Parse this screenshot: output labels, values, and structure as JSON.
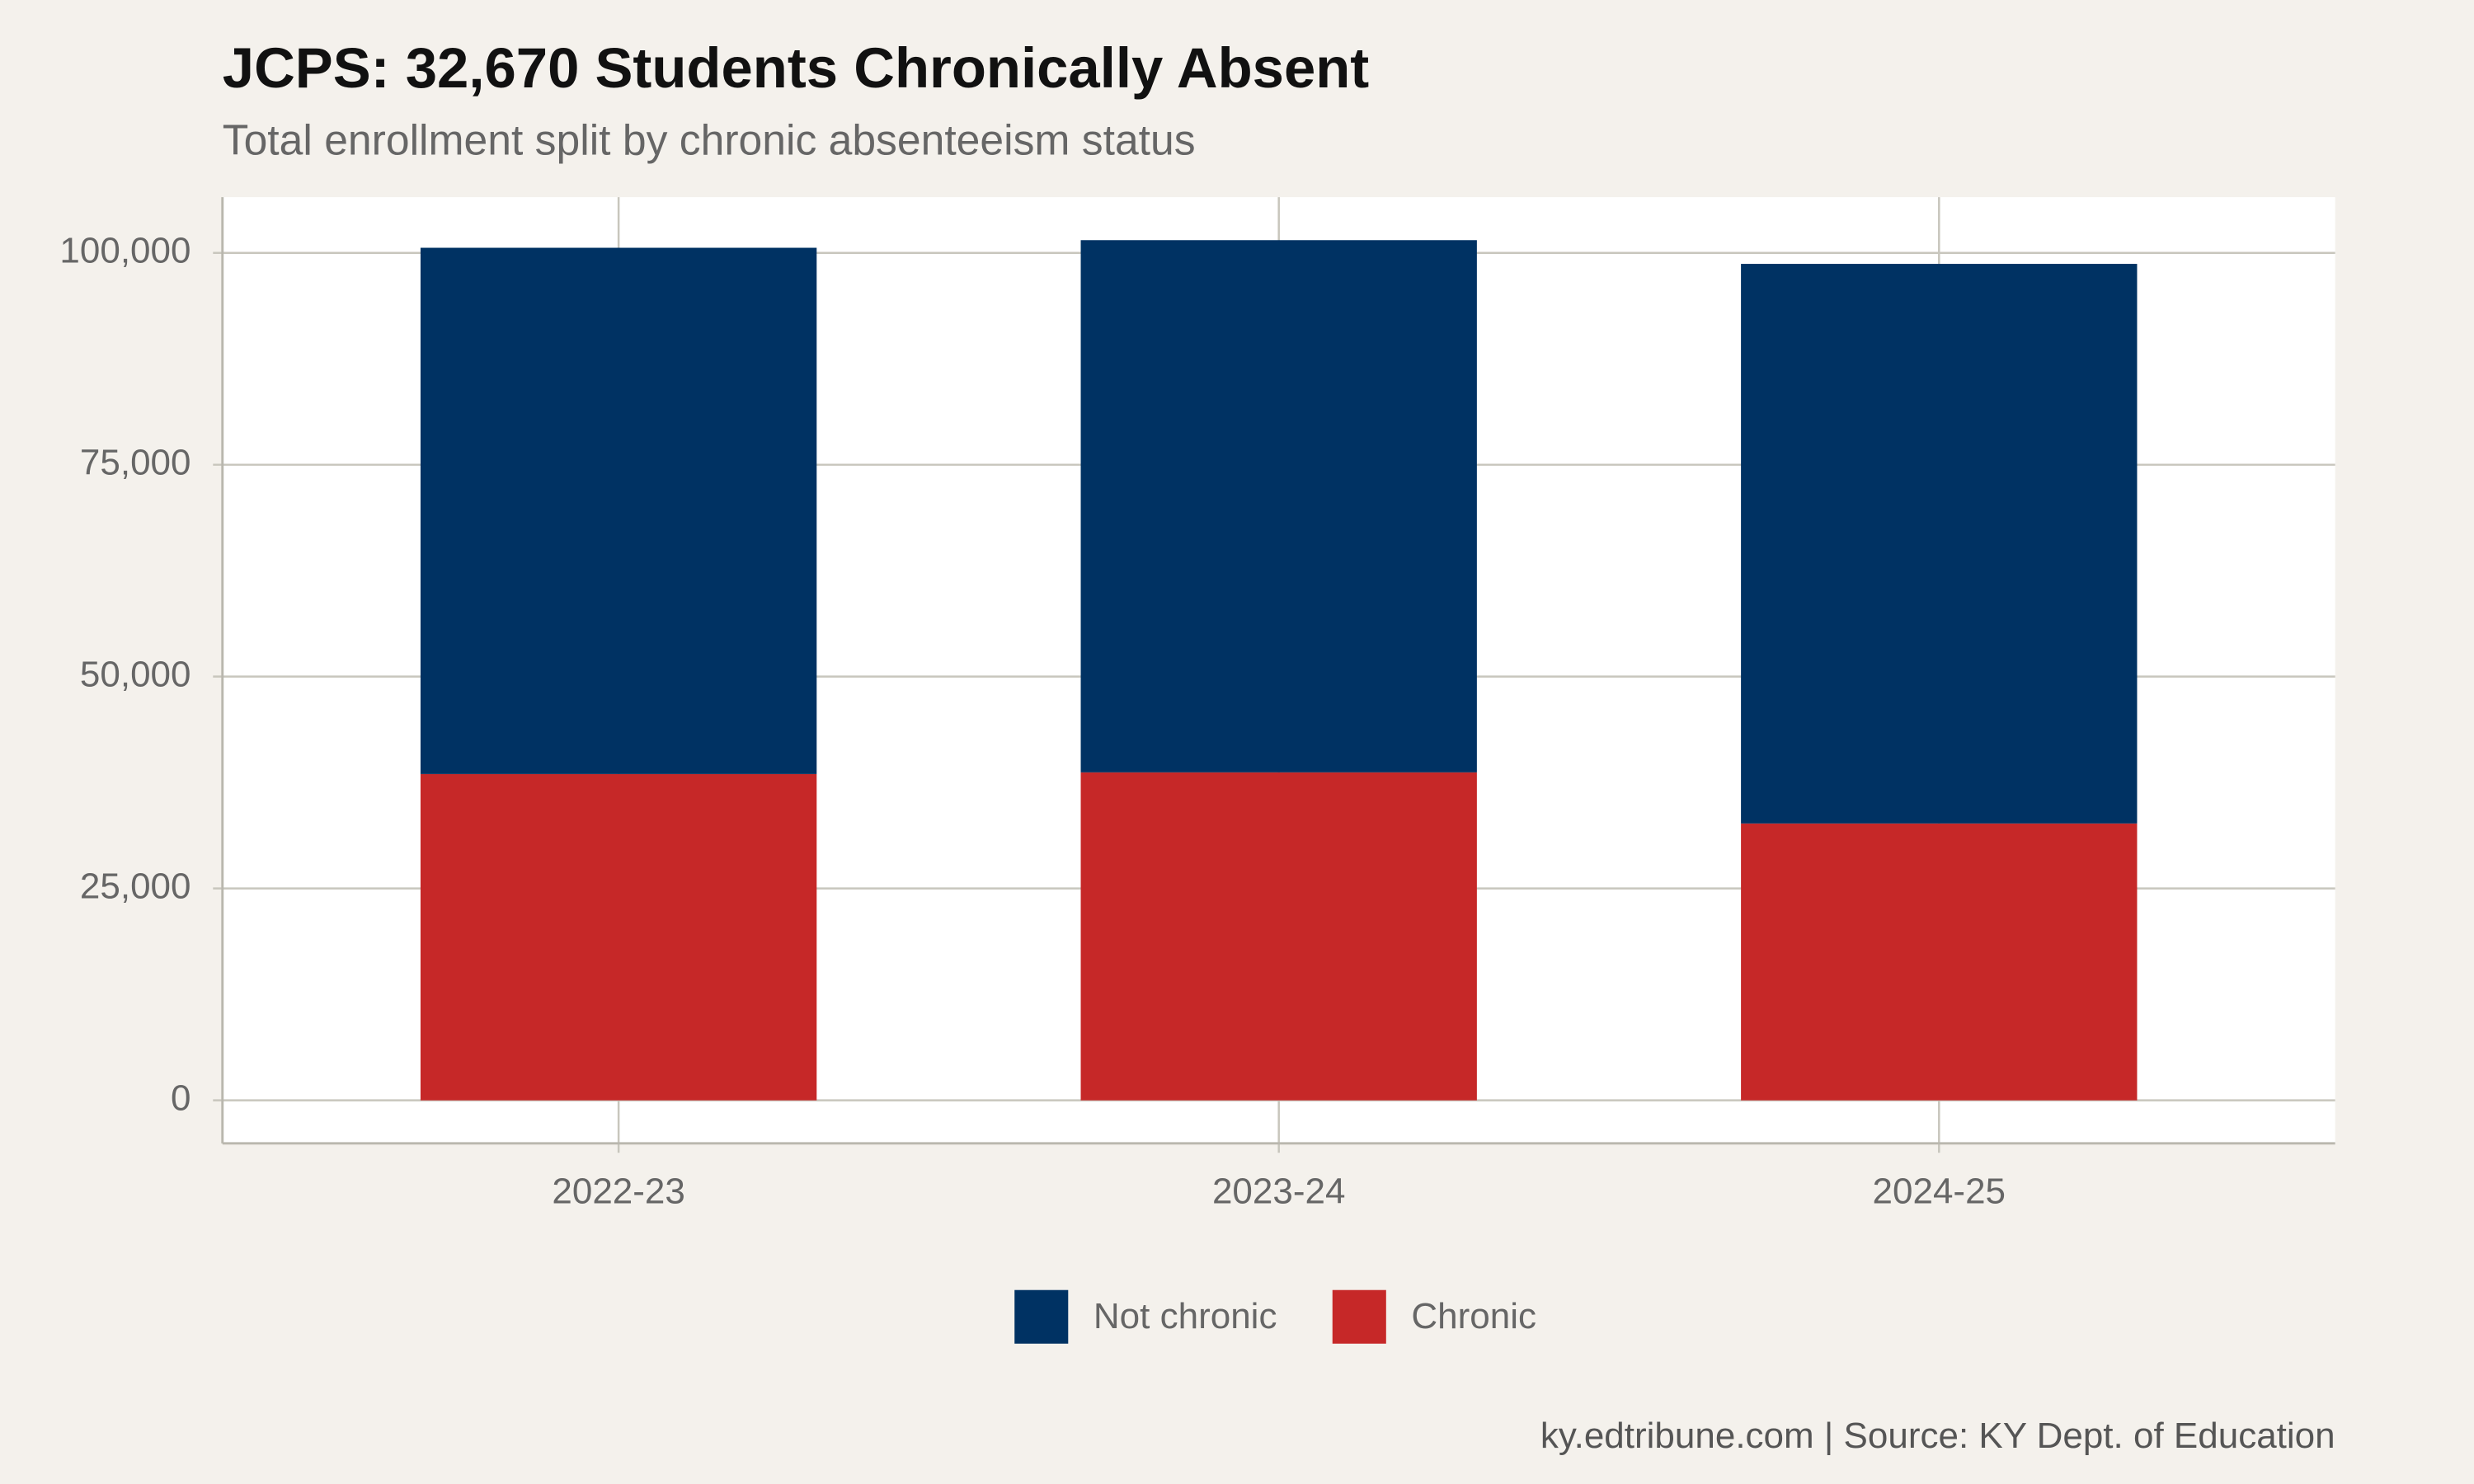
{
  "chart_data": {
    "type": "stacked-bar",
    "title": "JCPS: 32,670 Students Chronically Absent",
    "subtitle": "Total enrollment split by chronic absenteeism status",
    "caption": "ky.edtribune.com | Source: KY Dept. of Education",
    "categories": [
      "2022-23",
      "2023-24",
      "2024-25"
    ],
    "series": [
      {
        "name": "Not chronic",
        "color": "#003263",
        "values": [
          62100,
          62800,
          66030
        ]
      },
      {
        "name": "Chronic",
        "color": "#c62828",
        "values": [
          38500,
          38700,
          32670
        ]
      }
    ],
    "ylim": [
      -5075,
      106575
    ],
    "yticks": [
      0,
      {
        "value": 25000,
        "label": "25,000"
      },
      {
        "value": 50000,
        "label": "50,000"
      },
      {
        "value": 75000,
        "label": "75,000"
      },
      {
        "value": 100000,
        "label": "100,000"
      }
    ],
    "grid": true,
    "legend": "bottom"
  }
}
